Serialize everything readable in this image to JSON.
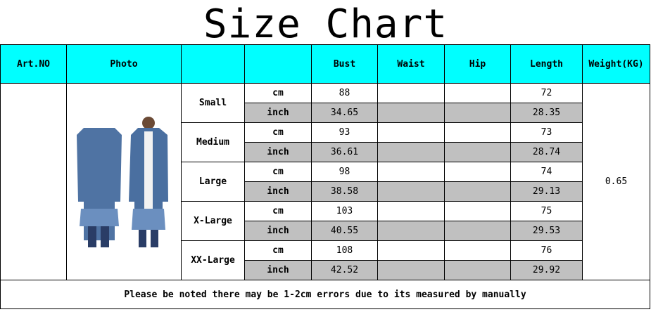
{
  "title": "Size Chart",
  "headers": [
    "Art.NO",
    "Photo",
    "",
    "",
    "Bust",
    "Waist",
    "Hip",
    "Length",
    "Weight(KG)"
  ],
  "photo_icon": "denim-jacket-photo",
  "sizes": [
    {
      "name": "Small",
      "cm": {
        "unit": "cm",
        "bust": "88",
        "waist": "",
        "hip": "",
        "length": "72"
      },
      "inch": {
        "unit": "inch",
        "bust": "34.65",
        "waist": "",
        "hip": "",
        "length": "28.35"
      }
    },
    {
      "name": "Medium",
      "cm": {
        "unit": "cm",
        "bust": "93",
        "waist": "",
        "hip": "",
        "length": "73"
      },
      "inch": {
        "unit": "inch",
        "bust": "36.61",
        "waist": "",
        "hip": "",
        "length": "28.74"
      }
    },
    {
      "name": "Large",
      "cm": {
        "unit": "cm",
        "bust": "98",
        "waist": "",
        "hip": "",
        "length": "74"
      },
      "inch": {
        "unit": "inch",
        "bust": "38.58",
        "waist": "",
        "hip": "",
        "length": "29.13"
      }
    },
    {
      "name": "X-Large",
      "cm": {
        "unit": "cm",
        "bust": "103",
        "waist": "",
        "hip": "",
        "length": "75"
      },
      "inch": {
        "unit": "inch",
        "bust": "40.55",
        "waist": "",
        "hip": "",
        "length": "29.53"
      }
    },
    {
      "name": "XX-Large",
      "cm": {
        "unit": "cm",
        "bust": "108",
        "waist": "",
        "hip": "",
        "length": "76"
      },
      "inch": {
        "unit": "inch",
        "bust": "42.52",
        "waist": "",
        "hip": "",
        "length": "29.92"
      }
    }
  ],
  "weight": "0.65",
  "note": "Please be noted there may be 1-2cm errors due to its measured by manually",
  "colors": {
    "header": "#00ffff",
    "inch_row": "#c0c0c0"
  }
}
